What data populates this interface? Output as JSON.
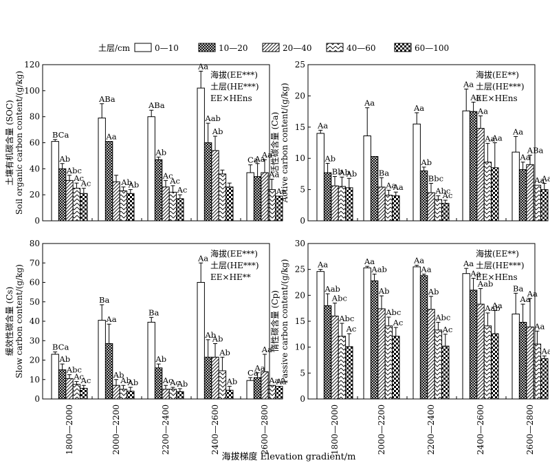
{
  "legend": {
    "title": "土层/cm",
    "items": [
      "0—10",
      "10—20",
      "20—40",
      "40—60",
      "60—100"
    ]
  },
  "x_axis_title": "海拔梯度 Elevation gradient/m",
  "categories": [
    "1800—2000",
    "2000—2200",
    "2200—2400",
    "2400—2600",
    "2600—2800"
  ],
  "chart_data": [
    {
      "type": "bar",
      "ylabel_cn": "土壤有机碳含量",
      "ylabel_en": "Soil organic carbon content/(g/kg)",
      "ylabel_var": "(SOC)",
      "ylim": [
        0,
        120
      ],
      "yticks": [
        0,
        20,
        40,
        60,
        80,
        100,
        120
      ],
      "stats": [
        "海拔(EE***)",
        "土层(HE***)",
        "EE×HEns"
      ],
      "values": [
        [
          61,
          40,
          31,
          25,
          21
        ],
        [
          79,
          61,
          30,
          23,
          21
        ],
        [
          80,
          47,
          26,
          22,
          17
        ],
        [
          102,
          60,
          54,
          36,
          26
        ],
        [
          37,
          34,
          37,
          24,
          19
        ]
      ],
      "errors": [
        [
          1.5,
          4,
          4,
          4,
          4
        ],
        [
          11,
          0,
          5,
          3,
          3
        ],
        [
          5,
          2,
          5,
          5,
          3
        ],
        [
          13,
          15,
          11,
          3,
          3
        ],
        [
          6,
          10,
          10,
          8,
          0
        ]
      ],
      "labels": [
        [
          "BCa",
          "Ab",
          "Abc",
          "Ac",
          "Ac"
        ],
        [
          "ABa",
          "Aa",
          "",
          "",
          ""
        ],
        [
          "ABa",
          "Ab",
          "Ac",
          "Ac",
          "Ac"
        ],
        [
          "Aa",
          "Aab",
          "Ab",
          "",
          ""
        ],
        [
          "Ca",
          "Aa",
          "Aa",
          "Aa",
          "Aa"
        ]
      ],
      "extra_labels": [
        {
          "text": "Ab",
          "g": 1,
          "b": 3
        },
        {
          "text": "Ab",
          "g": 1,
          "b": 4
        }
      ]
    },
    {
      "type": "bar",
      "ylabel_cn": "活性碳含量",
      "ylabel_en": "Active carbon content/(g/kg)",
      "ylabel_var": "(Ca)",
      "ylim": [
        0,
        25
      ],
      "yticks": [
        0,
        5,
        10,
        15,
        20,
        25
      ],
      "stats": [
        "海拔(EE**)",
        "土层(HE***)",
        "EE×HEns"
      ],
      "values": [
        [
          14,
          7.7,
          5.6,
          5.5,
          5.3
        ],
        [
          13.6,
          10.3,
          5.4,
          4.1,
          4
        ],
        [
          15.5,
          8,
          4.5,
          3.4,
          2.8
        ],
        [
          17.6,
          17.5,
          14.8,
          9.4,
          8.5
        ],
        [
          11,
          8.2,
          9,
          5.7,
          5
        ]
      ],
      "errors": [
        [
          0.5,
          1.5,
          1.5,
          1.5,
          1.5
        ],
        [
          4.5,
          0,
          1.5,
          0.8,
          0.6
        ],
        [
          1.8,
          0.6,
          1.5,
          0.6,
          0.5
        ],
        [
          3.5,
          1.5,
          2,
          3,
          4
        ],
        [
          2.5,
          1.2,
          1.5,
          0,
          1
        ]
      ],
      "labels": [
        [
          "Aa",
          "Ab",
          "Bb",
          "Ab",
          "Ab"
        ],
        [
          "Aa",
          "",
          "Ba",
          "Aa",
          "Aa"
        ],
        [
          "Aa",
          "Ab",
          "Bbc",
          "Abc",
          "Ac"
        ],
        [
          "Aa",
          "Aa",
          "Aa",
          "Aa",
          "Aa"
        ],
        [
          "Aa",
          "Aa",
          "ABa",
          "Aa",
          "Aa"
        ]
      ],
      "extra_labels": []
    },
    {
      "type": "bar",
      "ylabel_cn": "缓效性碳含量",
      "ylabel_en": "Slow carbon content/(g/kg)",
      "ylabel_var": "(Cs)",
      "ylim": [
        0,
        80
      ],
      "yticks": [
        0,
        10,
        20,
        30,
        40,
        50,
        60,
        70,
        80
      ],
      "stats": [
        "海拔(EE***)",
        "土层(HE***)",
        "EE×HE**"
      ],
      "values": [
        [
          23,
          15,
          10.5,
          7.5,
          5.5
        ],
        [
          40.5,
          28.5,
          7,
          5,
          4
        ],
        [
          39.5,
          16,
          5,
          5,
          3.8
        ],
        [
          60,
          21.5,
          21.5,
          14.5,
          4.5
        ],
        [
          9.5,
          11,
          14,
          7,
          6.5
        ]
      ],
      "errors": [
        [
          1.2,
          3,
          2,
          1.5,
          1.5
        ],
        [
          8,
          10,
          3,
          2,
          2
        ],
        [
          2.5,
          2,
          2,
          1,
          1.5
        ],
        [
          10,
          9,
          7,
          7,
          2
        ],
        [
          1.5,
          2.5,
          9,
          0,
          0
        ]
      ],
      "labels": [
        [
          "BCa",
          "Ab",
          "Abc",
          "Ac",
          "Ac"
        ],
        [
          "Ba",
          "Aa",
          "Ab",
          "Ab",
          "Ab"
        ],
        [
          "Ba",
          "Ab",
          "Ac",
          "Ac",
          "Ab"
        ],
        [
          "Aa",
          "Ab",
          "Ab",
          "Ab",
          "Ab"
        ],
        [
          "Ca",
          "Aa",
          "Aa",
          "Aa",
          "Aa"
        ]
      ],
      "extra_labels": []
    },
    {
      "type": "bar",
      "ylabel_cn": "惰性碳含量",
      "ylabel_en": "Passive carbon content/(g/kg)",
      "ylabel_var": "(Cp)",
      "ylim": [
        0,
        30
      ],
      "yticks": [
        0,
        5,
        10,
        15,
        20,
        25,
        30
      ],
      "stats": [
        "海拔(EE**)",
        "土层(HE***)",
        "EE×HEns"
      ],
      "values": [
        [
          24.6,
          18,
          16,
          12.1,
          10.1
        ],
        [
          25.3,
          22.8,
          17.4,
          14.1,
          12.1
        ],
        [
          25.5,
          23.8,
          17.3,
          13.3,
          10.2
        ],
        [
          24.2,
          21,
          18.3,
          14.1,
          12.6
        ],
        [
          16.4,
          14.8,
          13.9,
          10.6,
          7.8
        ]
      ],
      "errors": [
        [
          0.4,
          2.3,
          2.5,
          2.5,
          2.5
        ],
        [
          0.3,
          1.3,
          2.5,
          1.7,
          1.7
        ],
        [
          0.3,
          0.3,
          2.5,
          1.5,
          2.3
        ],
        [
          1,
          2.3,
          3,
          2.5,
          4.5
        ],
        [
          4,
          3.5,
          5.5,
          2.5,
          0.5
        ]
      ],
      "labels": [
        [
          "Aa",
          "Aab",
          "Abc",
          "Abc",
          "Ac"
        ],
        [
          "Aa",
          "Aab",
          "Ab",
          "Abc",
          "Ac"
        ],
        [
          "Aa",
          "Aa",
          "Ab",
          "Abc",
          "Ac"
        ],
        [
          "Aa",
          "Aa",
          "Aab",
          "Aab",
          "Aa"
        ],
        [
          "Ba",
          "Aa",
          "Aa",
          "Aa",
          "Aa"
        ]
      ],
      "extra_labels": []
    }
  ]
}
